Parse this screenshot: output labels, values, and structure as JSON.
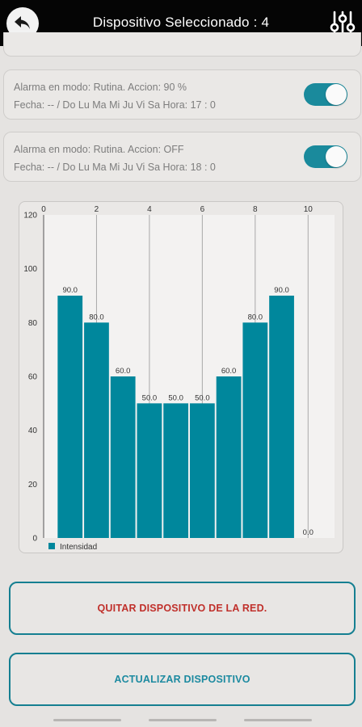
{
  "header": {
    "title": "Dispositivo Seleccionado : 4",
    "back_icon": "back-arrow-icon",
    "settings_icon": "sliders-settings-icon"
  },
  "alarms": [
    {
      "line1": "Alarma en modo: Rutina. Accion: 90 %",
      "line2": "Fecha: -- /  Do Lu Ma Mi Ju Vi Sa     Hora: 17 : 0",
      "enabled": true
    },
    {
      "line1": "Alarma en modo: Rutina. Accion: OFF",
      "line2": "Fecha: -- /  Do Lu Ma Mi Ju Vi Sa     Hora: 18 : 0",
      "enabled": true
    }
  ],
  "chart_data": {
    "type": "bar",
    "x": [
      1,
      2,
      3,
      4,
      5,
      6,
      7,
      8,
      9,
      10
    ],
    "values": [
      90,
      80,
      60,
      50,
      50,
      50,
      60,
      80,
      90,
      0
    ],
    "value_labels": [
      "90.0",
      "80.0",
      "60.0",
      "50.0",
      "50.0",
      "50.0",
      "60.0",
      "80.0",
      "90.0",
      "0.0"
    ],
    "xticks": [
      "0",
      "2",
      "4",
      "6",
      "8",
      "10"
    ],
    "yticks": [
      "0",
      "20",
      "40",
      "60",
      "80",
      "100",
      "120"
    ],
    "xlim": [
      0,
      11
    ],
    "ylim": [
      0,
      120
    ],
    "series": [
      {
        "name": "Intensidad",
        "color": "#00879c"
      }
    ],
    "legend": "bottom-left",
    "grid": "vertical"
  },
  "buttons": {
    "remove_label": "QUITAR DISPOSITIVO DE LA RED.",
    "update_label": "ACTUALIZAR DISPOSITIVO"
  },
  "colors": {
    "accent": "#1a8a9c",
    "danger": "#c0302b",
    "topbar": "#050505"
  }
}
